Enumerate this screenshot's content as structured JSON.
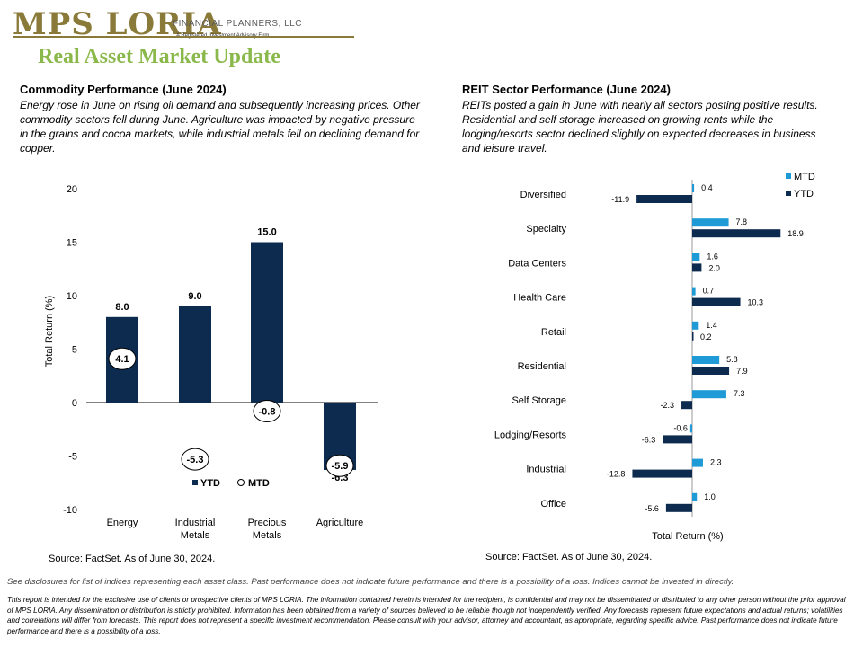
{
  "header": {
    "logo_main": "MPS LORIA",
    "logo_sub": "FINANCIAL PLANNERS, LLC",
    "logo_tagline": "A Registered Investment Advisory Firm",
    "page_title": "Real Asset Market Update"
  },
  "commodity": {
    "title": "Commodity  Performance (June 2024)",
    "body": "Energy rose in June on rising oil demand and subsequently increasing prices. Other commodity sectors fell during June. Agriculture was impacted by negative pressure in the grains and cocoa markets, while industrial metals fell on declining demand for copper.",
    "source": "Source: FactSet. As of June 30, 2024."
  },
  "reit": {
    "title": "REIT Sector Performance (June 2024)",
    "body": "REITs posted a gain in June with nearly all sectors posting positive results. Residential and self storage increased on growing rents while the lodging/resorts sector declined slightly on expected decreases in business and leisure travel.",
    "source": "Source: FactSet. As of June 30, 2024."
  },
  "disclosure": "See disclosures for list of indices representing each asset class. Past performance does not indicate future performance and there is a possibility of a loss. Indices cannot be invested in directly.",
  "footer": "This report is intended for the exclusive use of clients or prospective clients of MPS LORIA. The information contained herein is intended for the recipient, is confidential and may not be disseminated or distributed to any other person without the prior approval of MPS LORIA. Any dissemination or distribution is strictly prohibited. Information has been obtained from a variety of sources believed to be reliable though not independently verified. Any forecasts represent future expectations and actual returns; volatilities and correlations will differ from forecasts. This report does not represent a specific investment recommendation. Please consult with your advisor, attorney and accountant, as appropriate, regarding specific advice. Past performance does not indicate future performance and there is a possibility of a loss.",
  "colors": {
    "navy": "#0d2a4f",
    "cyan": "#1e9ad6",
    "title_green": "#8ab84a",
    "logo_gold": "#8a7a3a"
  },
  "chart_data": [
    {
      "type": "bar",
      "categories": [
        "Energy",
        "Industrial Metals",
        "Precious Metals",
        "Agriculture"
      ],
      "series": [
        {
          "name": "YTD",
          "values": [
            8.0,
            9.0,
            15.0,
            -6.3
          ]
        },
        {
          "name": "MTD",
          "values": [
            4.1,
            -5.3,
            -0.8,
            -5.9
          ]
        }
      ],
      "ylabel": "Total Return (%)",
      "ylim": [
        -10,
        20
      ],
      "yticks": [
        -10,
        -5,
        0,
        5,
        10,
        15,
        20
      ],
      "legend": "bottom-center"
    },
    {
      "type": "bar",
      "orientation": "horizontal",
      "categories": [
        "Diversified",
        "Specialty",
        "Data Centers",
        "Health Care",
        "Retail",
        "Residential",
        "Self Storage",
        "Lodging/Resorts",
        "Industrial",
        "Office"
      ],
      "series": [
        {
          "name": "MTD",
          "values": [
            0.4,
            7.8,
            1.6,
            0.7,
            1.4,
            5.8,
            7.3,
            -0.6,
            2.3,
            1.0
          ]
        },
        {
          "name": "YTD",
          "values": [
            -11.9,
            18.9,
            2.0,
            10.3,
            0.2,
            7.9,
            -2.3,
            -6.3,
            -12.8,
            -5.6
          ]
        }
      ],
      "xlabel": "Total Return (%)",
      "legend": "top-right"
    }
  ]
}
